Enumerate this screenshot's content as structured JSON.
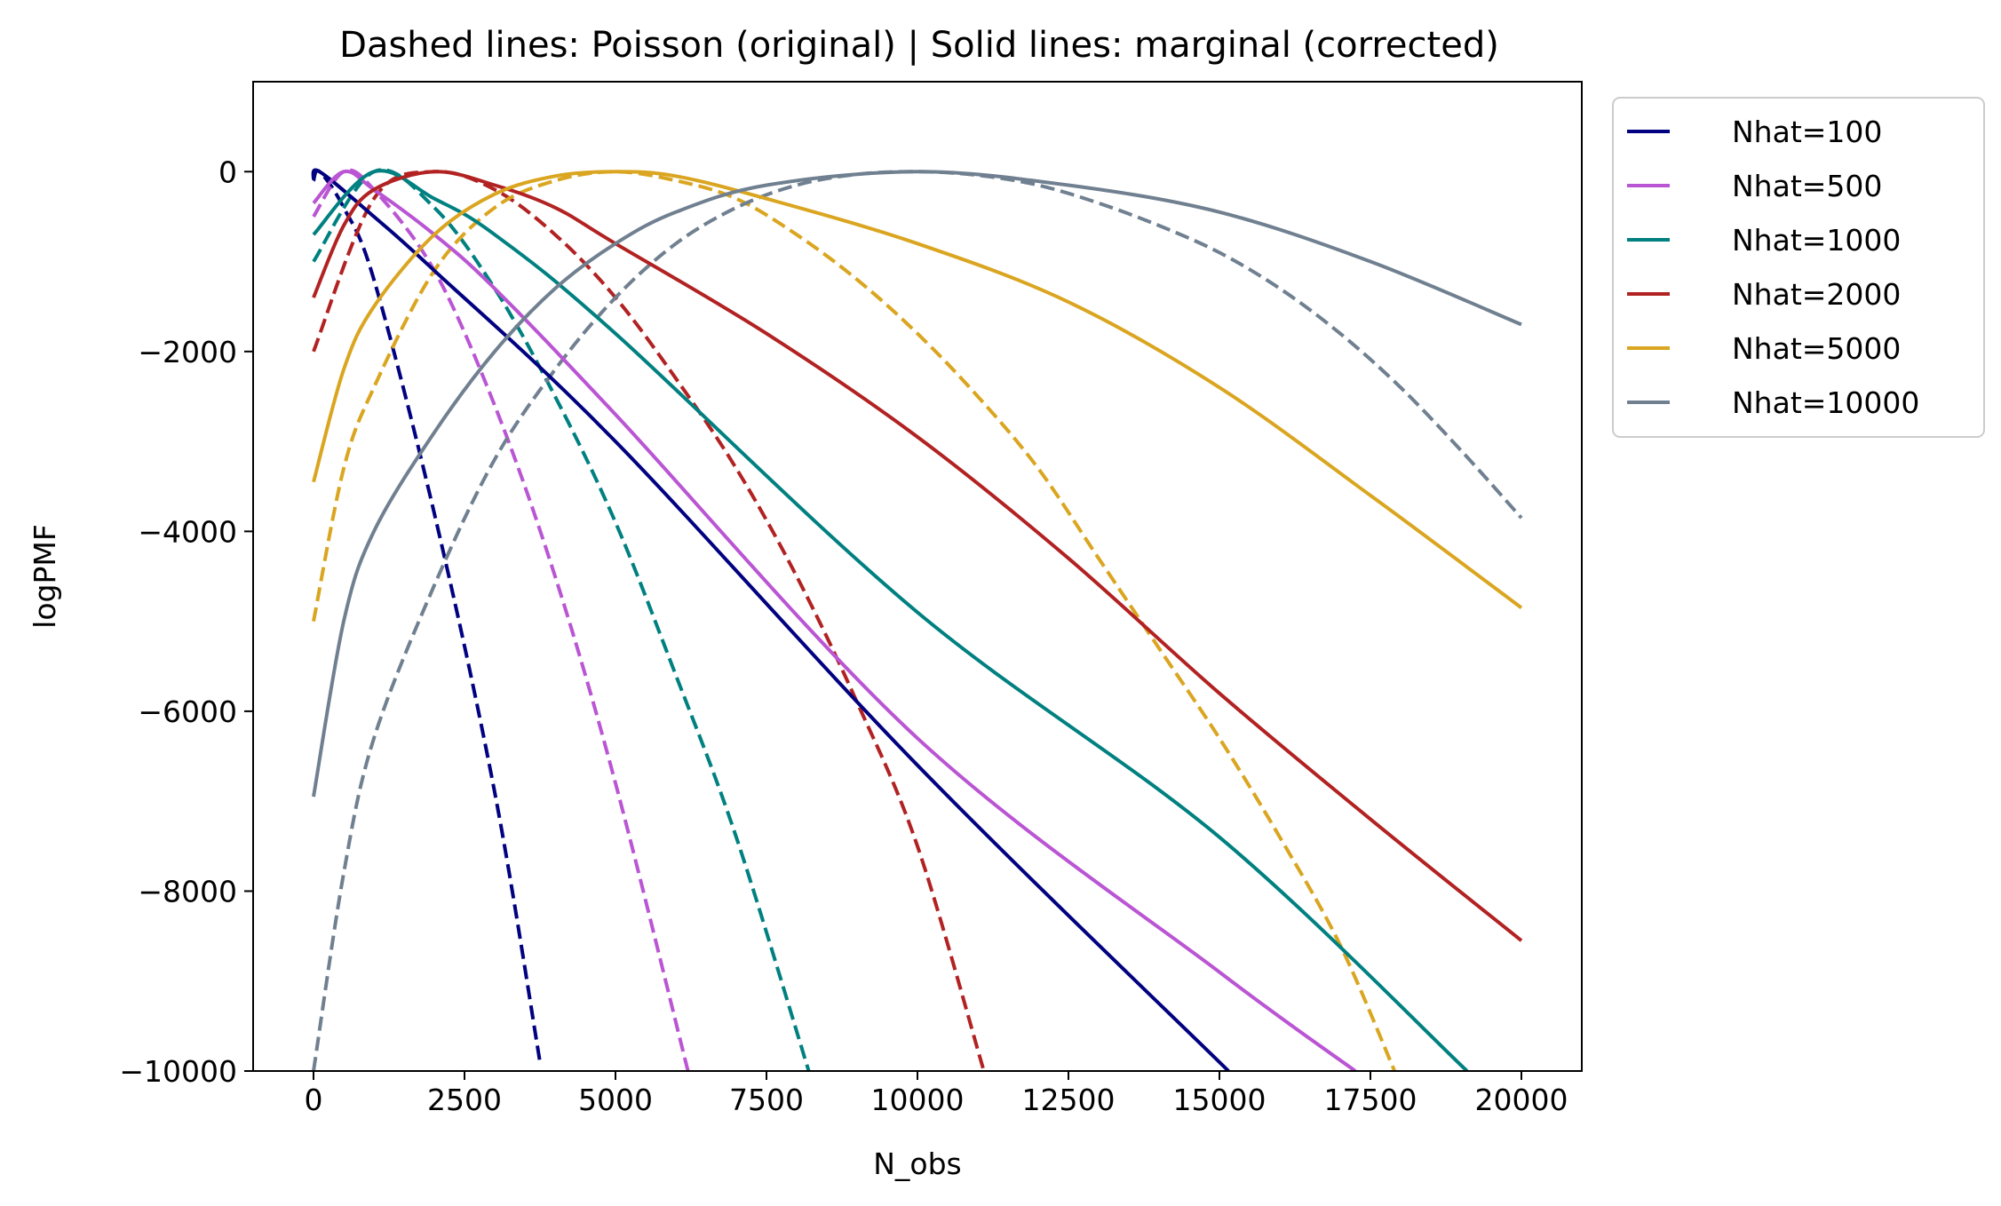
{
  "chart_data": {
    "type": "line",
    "title": "Dashed lines: Poisson (original) | Solid lines: marginal (corrected)",
    "xlabel": "N_obs",
    "ylabel": "logPMF",
    "xlim": [
      -1000,
      21000
    ],
    "ylim": [
      -10000,
      1000
    ],
    "xticks": [
      0,
      2500,
      5000,
      7500,
      10000,
      12500,
      15000,
      17500,
      20000
    ],
    "xtick_labels": [
      "0",
      "2500",
      "5000",
      "7500",
      "10000",
      "12500",
      "15000",
      "17500",
      "20000"
    ],
    "yticks": [
      -10000,
      -8000,
      -6000,
      -4000,
      -2000,
      0
    ],
    "ytick_labels": [
      "−10000",
      "−8000",
      "−6000",
      "−4000",
      "−2000",
      "0"
    ],
    "grid": false,
    "legend_position": "outside-right-top",
    "legend": [
      "Nhat=100",
      "Nhat=500",
      "Nhat=1000",
      "Nhat=2000",
      "Nhat=5000",
      "Nhat=10000"
    ],
    "series": [
      {
        "nhat": 100,
        "color": "#000080",
        "dashed": [
          [
            0,
            -100
          ],
          [
            100,
            0
          ],
          [
            500,
            -400
          ],
          [
            1000,
            -1200
          ],
          [
            2000,
            -3800
          ],
          [
            3000,
            -6900
          ],
          [
            3750,
            -9900
          ]
        ],
        "solid": [
          [
            0,
            -100
          ],
          [
            100,
            0
          ],
          [
            1000,
            -500
          ],
          [
            2000,
            -1100
          ],
          [
            5000,
            -3000
          ],
          [
            10000,
            -6600
          ],
          [
            15150,
            -10000
          ]
        ]
      },
      {
        "nhat": 500,
        "color": "#ba55d3",
        "dashed": [
          [
            0,
            -500
          ],
          [
            500,
            0
          ],
          [
            1000,
            -200
          ],
          [
            2000,
            -1100
          ],
          [
            3000,
            -2600
          ],
          [
            4000,
            -4500
          ],
          [
            5000,
            -6800
          ],
          [
            6200,
            -10000
          ]
        ],
        "solid": [
          [
            0,
            -350
          ],
          [
            500,
            0
          ],
          [
            1000,
            -200
          ],
          [
            2000,
            -700
          ],
          [
            3000,
            -1300
          ],
          [
            5000,
            -2700
          ],
          [
            10000,
            -6300
          ],
          [
            15000,
            -8900
          ],
          [
            17250,
            -10000
          ]
        ]
      },
      {
        "nhat": 1000,
        "color": "#008080",
        "dashed": [
          [
            0,
            -1000
          ],
          [
            1000,
            0
          ],
          [
            2000,
            -400
          ],
          [
            3000,
            -1300
          ],
          [
            4000,
            -2500
          ],
          [
            5000,
            -3900
          ],
          [
            6000,
            -5600
          ],
          [
            7000,
            -7400
          ],
          [
            8200,
            -10000
          ]
        ],
        "solid": [
          [
            0,
            -700
          ],
          [
            1000,
            0
          ],
          [
            2000,
            -300
          ],
          [
            3000,
            -700
          ],
          [
            5000,
            -1800
          ],
          [
            10000,
            -4900
          ],
          [
            15000,
            -7400
          ],
          [
            19100,
            -10000
          ]
        ]
      },
      {
        "nhat": 2000,
        "color": "#b22222",
        "dashed": [
          [
            0,
            -2000
          ],
          [
            1000,
            -300
          ],
          [
            2000,
            0
          ],
          [
            3000,
            -200
          ],
          [
            4000,
            -700
          ],
          [
            5000,
            -1400
          ],
          [
            6000,
            -2300
          ],
          [
            7000,
            -3300
          ],
          [
            8000,
            -4500
          ],
          [
            9000,
            -5900
          ],
          [
            10000,
            -7500
          ],
          [
            11100,
            -10000
          ]
        ],
        "solid": [
          [
            0,
            -1400
          ],
          [
            500,
            -600
          ],
          [
            1000,
            -200
          ],
          [
            2000,
            0
          ],
          [
            3000,
            -150
          ],
          [
            4000,
            -400
          ],
          [
            5000,
            -800
          ],
          [
            7500,
            -1800
          ],
          [
            10000,
            -2950
          ],
          [
            12500,
            -4300
          ],
          [
            15000,
            -5800
          ],
          [
            17500,
            -7200
          ],
          [
            20000,
            -8550
          ]
        ]
      },
      {
        "nhat": 5000,
        "color": "#daa520",
        "dashed": [
          [
            0,
            -5000
          ],
          [
            500,
            -3300
          ],
          [
            1000,
            -2400
          ],
          [
            2000,
            -1100
          ],
          [
            3000,
            -400
          ],
          [
            4000,
            -100
          ],
          [
            5000,
            0
          ],
          [
            6000,
            -100
          ],
          [
            7000,
            -300
          ],
          [
            8000,
            -700
          ],
          [
            9000,
            -1200
          ],
          [
            10000,
            -1800
          ],
          [
            11000,
            -2500
          ],
          [
            12000,
            -3300
          ],
          [
            13000,
            -4300
          ],
          [
            14000,
            -5300
          ],
          [
            15000,
            -6300
          ],
          [
            16000,
            -7400
          ],
          [
            17000,
            -8600
          ],
          [
            17900,
            -10000
          ]
        ],
        "solid": [
          [
            0,
            -3450
          ],
          [
            500,
            -2200
          ],
          [
            1000,
            -1500
          ],
          [
            2000,
            -700
          ],
          [
            3000,
            -250
          ],
          [
            4000,
            -50
          ],
          [
            5000,
            0
          ],
          [
            6000,
            -50
          ],
          [
            7500,
            -300
          ],
          [
            10000,
            -800
          ],
          [
            12500,
            -1450
          ],
          [
            15000,
            -2400
          ],
          [
            17500,
            -3600
          ],
          [
            20000,
            -4850
          ]
        ]
      },
      {
        "nhat": 10000,
        "color": "#708090",
        "dashed": [
          [
            0,
            -10000
          ],
          [
            500,
            -7800
          ],
          [
            1000,
            -6300
          ],
          [
            2000,
            -4600
          ],
          [
            3000,
            -3200
          ],
          [
            4000,
            -2200
          ],
          [
            5000,
            -1400
          ],
          [
            6000,
            -800
          ],
          [
            7000,
            -400
          ],
          [
            8000,
            -150
          ],
          [
            9000,
            -30
          ],
          [
            10000,
            0
          ],
          [
            11000,
            -40
          ],
          [
            12000,
            -150
          ],
          [
            13000,
            -350
          ],
          [
            14000,
            -600
          ],
          [
            15000,
            -900
          ],
          [
            16000,
            -1300
          ],
          [
            17000,
            -1800
          ],
          [
            18000,
            -2400
          ],
          [
            19000,
            -3100
          ],
          [
            20000,
            -3850
          ]
        ],
        "solid": [
          [
            0,
            -6950
          ],
          [
            500,
            -5000
          ],
          [
            1000,
            -4000
          ],
          [
            2000,
            -2900
          ],
          [
            3000,
            -2000
          ],
          [
            4000,
            -1300
          ],
          [
            5000,
            -800
          ],
          [
            6000,
            -450
          ],
          [
            7500,
            -150
          ],
          [
            10000,
            0
          ],
          [
            12500,
            -150
          ],
          [
            15000,
            -450
          ],
          [
            17500,
            -1000
          ],
          [
            20000,
            -1700
          ]
        ]
      }
    ]
  }
}
